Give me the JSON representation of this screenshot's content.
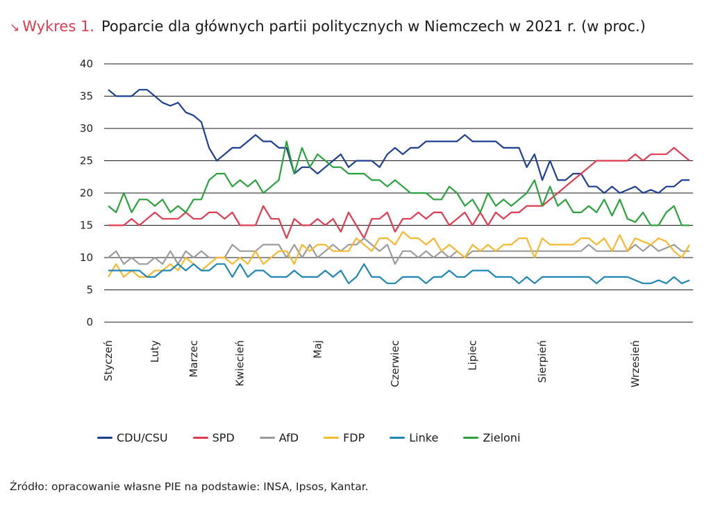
{
  "header": {
    "arrow": "↘",
    "label": "Wykres 1.",
    "title": "Poparcie dla głównych partii politycznych w Niemczech w 2021 r. (w proc.)"
  },
  "source": "Źródło: opracowanie własne PIE na podstawie: INSA, Ipsos, Kantar.",
  "chart_data": {
    "type": "line",
    "title": "Poparcie dla głównych partii politycznych w Niemczech w 2021 r. (w proc.)",
    "xlabel": "",
    "ylabel": "",
    "ylim": [
      0,
      40
    ],
    "yticks": [
      0,
      5,
      10,
      15,
      20,
      25,
      30,
      35,
      40
    ],
    "grid": "horizontal",
    "legend_position": "bottom",
    "month_labels": [
      {
        "label": "Styczeń",
        "index": 0
      },
      {
        "label": "Luty",
        "index": 6
      },
      {
        "label": "Marzec",
        "index": 11
      },
      {
        "label": "Kwiecień",
        "index": 17
      },
      {
        "label": "Maj",
        "index": 27
      },
      {
        "label": "Czerwiec",
        "index": 37
      },
      {
        "label": "Lipiec",
        "index": 47
      },
      {
        "label": "Sierpień",
        "index": 56
      },
      {
        "label": "Wrzesień",
        "index": 68
      }
    ],
    "x_count": 76,
    "series": [
      {
        "name": "CDU/CSU",
        "color": "#1c3f94",
        "values": [
          36,
          35,
          35,
          35,
          36,
          36,
          35,
          34,
          33.5,
          34,
          32.5,
          32,
          31,
          27,
          25,
          26,
          27,
          27,
          28,
          29,
          28,
          28,
          27,
          27,
          23,
          24,
          24,
          23,
          24,
          25,
          26,
          24,
          25,
          25,
          25,
          24,
          26,
          27,
          26,
          27,
          27,
          28,
          28,
          28,
          28,
          28,
          29,
          28,
          28,
          28,
          28,
          27,
          27,
          27,
          24,
          26,
          22,
          25,
          22,
          22,
          23,
          23,
          21,
          21,
          20,
          21,
          20,
          20.5,
          21,
          20,
          20.5,
          20,
          21,
          21,
          22,
          22
        ]
      },
      {
        "name": "SPD",
        "color": "#e03a4e",
        "values": [
          15,
          15,
          15,
          16,
          15,
          16,
          17,
          16,
          16,
          16,
          17,
          16,
          16,
          17,
          17,
          16,
          17,
          15,
          15,
          15,
          18,
          16,
          16,
          13,
          16,
          15,
          15,
          16,
          15,
          16,
          14,
          17,
          15,
          13,
          16,
          16,
          17,
          14,
          16,
          16,
          17,
          16,
          17,
          17,
          15,
          16,
          17,
          15,
          17,
          15,
          17,
          16,
          17,
          17,
          18,
          18,
          18,
          19,
          20,
          21,
          22,
          23,
          24,
          25,
          25,
          25,
          25,
          25,
          26,
          25,
          26,
          26,
          26,
          27,
          26,
          25
        ]
      },
      {
        "name": "AfD",
        "color": "#9b9b9b",
        "values": [
          10,
          11,
          9,
          10,
          9,
          9,
          10,
          9,
          11,
          9,
          11,
          10,
          11,
          10,
          10,
          10,
          12,
          11,
          11,
          11,
          12,
          12,
          12,
          10,
          12,
          10,
          12,
          10,
          11,
          12,
          11,
          12,
          12,
          13,
          12,
          11,
          12,
          9,
          11,
          11,
          10,
          11,
          10,
          11,
          10,
          11,
          10,
          11,
          11,
          11,
          11,
          11,
          11,
          11,
          11,
          11,
          11,
          11,
          11,
          11,
          11,
          11,
          12,
          11,
          11,
          11,
          11,
          11,
          12,
          11,
          12,
          11,
          11.5,
          12,
          11,
          11
        ]
      },
      {
        "name": "FDP",
        "color": "#f5b82e",
        "values": [
          7,
          9,
          7,
          8,
          7,
          7,
          8,
          8,
          9,
          8,
          10,
          9,
          8,
          9,
          10,
          10,
          9,
          10,
          9,
          11,
          9,
          10,
          11,
          11,
          9,
          12,
          11,
          12,
          12,
          11,
          11,
          11,
          13,
          12,
          11,
          13,
          13,
          12,
          14,
          13,
          13,
          12,
          13,
          11,
          12,
          11,
          10,
          12,
          11,
          12,
          11,
          12,
          12,
          13,
          13,
          10,
          13,
          12,
          12,
          12,
          12,
          13,
          13,
          12,
          13,
          11,
          13.5,
          11,
          13,
          12.5,
          12,
          13,
          12.5,
          11,
          10,
          12
        ]
      },
      {
        "name": "Linke",
        "color": "#1f86b5",
        "values": [
          8,
          8,
          8,
          8,
          8,
          7,
          7,
          8,
          8,
          9,
          8,
          9,
          8,
          8,
          9,
          9,
          7,
          9,
          7,
          8,
          8,
          7,
          7,
          7,
          8,
          7,
          7,
          7,
          8,
          7,
          8,
          6,
          7,
          9,
          7,
          7,
          6,
          6,
          7,
          7,
          7,
          6,
          7,
          7,
          8,
          7,
          7,
          8,
          8,
          8,
          7,
          7,
          7,
          6,
          7,
          6,
          7,
          7,
          7,
          7,
          7,
          7,
          7,
          6,
          7,
          7,
          7,
          7,
          6.5,
          6,
          6,
          6.5,
          6,
          7,
          6,
          6.5
        ]
      },
      {
        "name": "Zieloni",
        "color": "#2aa23c",
        "values": [
          18,
          17,
          20,
          17,
          19,
          19,
          18,
          19,
          17,
          18,
          17,
          19,
          19,
          22,
          23,
          23,
          21,
          22,
          21,
          22,
          20,
          21,
          22,
          28,
          23,
          27,
          24,
          26,
          25,
          24,
          24,
          23,
          23,
          23,
          22,
          22,
          21,
          22,
          21,
          20,
          20,
          20,
          19,
          19,
          21,
          20,
          18,
          19,
          17,
          20,
          18,
          19,
          18,
          19,
          20,
          22,
          18,
          21,
          18,
          19,
          17,
          17,
          18,
          17,
          19,
          16.5,
          19,
          16,
          15.5,
          17,
          15,
          15,
          17,
          18,
          15,
          15
        ]
      }
    ]
  }
}
